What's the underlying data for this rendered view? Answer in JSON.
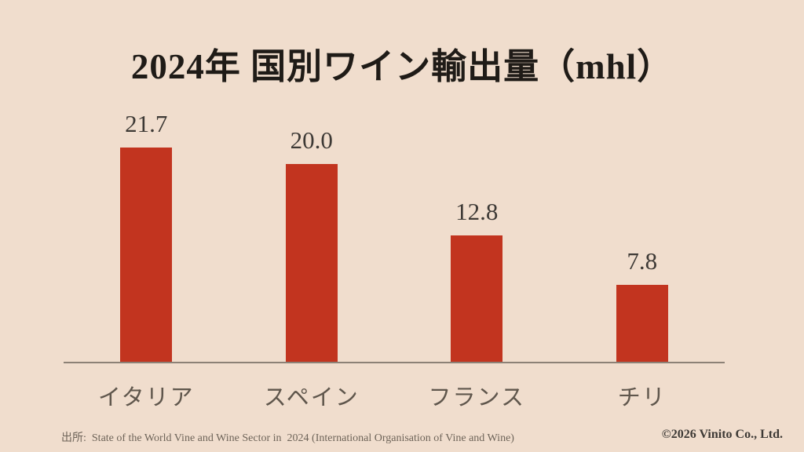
{
  "page": {
    "background_color": "#f0ddcd"
  },
  "title": "2024年 国別ワイン輸出量（mhl）",
  "chart_data": {
    "type": "bar",
    "title": "2024年 国別ワイン輸出量（mhl）",
    "categories": [
      "イタリア",
      "スペイン",
      "フランス",
      "チリ"
    ],
    "values": [
      21.7,
      20.0,
      12.8,
      7.8
    ],
    "value_labels": [
      "21.7",
      "20.0",
      "12.8",
      "7.8"
    ],
    "xlabel": "",
    "ylabel": "",
    "ylim": [
      0,
      21.7
    ],
    "grid": false,
    "legend": false,
    "bar_color": "#c2341f",
    "value_label_color": "#3d3935",
    "category_label_color": "#5f564c",
    "axis_line_color": "#8c8176"
  },
  "footer": {
    "source": "出所:  State of the World Vine and Wine Sector in  2024 (International Organisation of Vine and Wine)",
    "copyright": "©2026 Vinito Co., Ltd."
  }
}
